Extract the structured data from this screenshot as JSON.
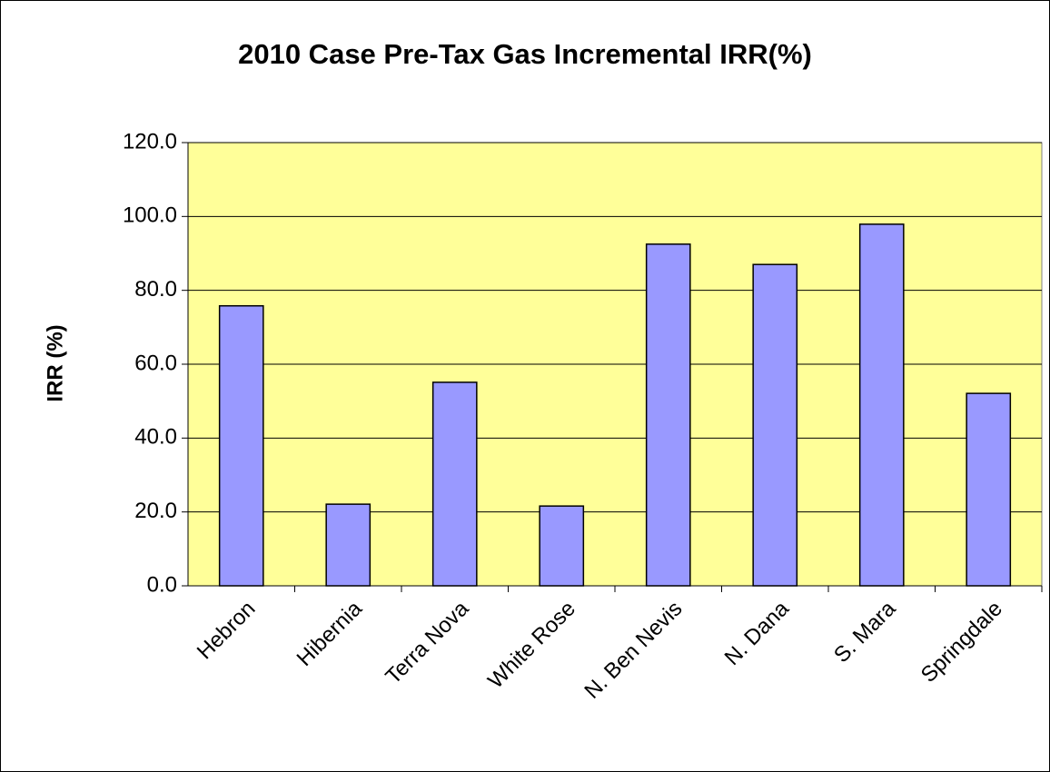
{
  "chart_data": {
    "type": "bar",
    "title": "2010 Case Pre-Tax Gas Incremental IRR(%)",
    "y_label": "IRR (%)",
    "categories": [
      "Hebron",
      "Hibernia",
      "Terra Nova",
      "White Rose",
      "N. Ben Nevis",
      "N. Dana",
      "S. Mara",
      "Springdale"
    ],
    "values": [
      75.8,
      22.1,
      55.1,
      21.6,
      92.5,
      87.0,
      97.9,
      52.1
    ],
    "color": "#9999ff",
    "plot_background": "#ffff99",
    "ylim": [
      0,
      120
    ],
    "yticks": [
      {
        "value": 0,
        "label": "0.0"
      },
      {
        "value": 20,
        "label": "20.0"
      },
      {
        "value": 40,
        "label": "40.0"
      },
      {
        "value": 60,
        "label": "60.0"
      },
      {
        "value": 80,
        "label": "80.0"
      },
      {
        "value": 100,
        "label": "100.0"
      },
      {
        "value": 120,
        "label": "120.0"
      }
    ],
    "grid": true
  }
}
